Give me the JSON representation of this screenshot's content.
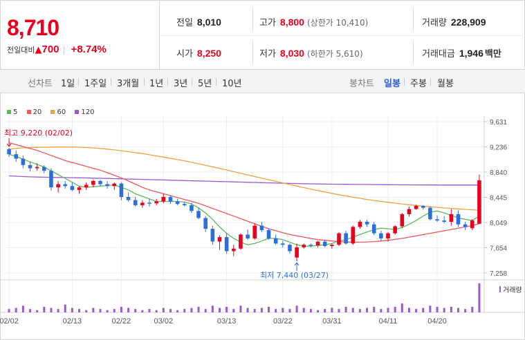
{
  "quote": {
    "price": "8,710",
    "change_label": "전일대비",
    "change_arrow": "▲",
    "change_amount": "700",
    "change_pct": "+8.74%"
  },
  "stats": {
    "prev_close_label": "전일",
    "prev_close": "8,010",
    "high_label": "고가",
    "high": "8,800",
    "upper_limit": "(상한가 10,410)",
    "volume_label": "거래량",
    "volume": "228,909",
    "open_label": "시가",
    "open": "8,250",
    "low_label": "저가",
    "low": "8,030",
    "lower_limit": "(하한가 5,610)",
    "value_label": "거래대금",
    "value": "1,946",
    "value_unit": "백만"
  },
  "tabs": {
    "line_chart_label": "선차트",
    "periods": [
      "1일",
      "1주일",
      "3개월",
      "1년",
      "3년",
      "5년",
      "10년"
    ],
    "candle_chart_label": "봉차트",
    "candle_periods": [
      "일봉",
      "주봉",
      "월봉"
    ],
    "active_candle": "일봉"
  },
  "colors": {
    "up": "#e8001c",
    "down": "#2a6fdb",
    "ma5": "#5cb85c",
    "ma20": "#f0555a",
    "ma60": "#f0a040",
    "ma120": "#9b59d0",
    "volume": "#9b59d0"
  },
  "chart_data": {
    "type": "candlestick",
    "legend": [
      {
        "name": "5",
        "color": "#5cb85c"
      },
      {
        "name": "20",
        "color": "#f0555a"
      },
      {
        "name": "60",
        "color": "#f0a040"
      },
      {
        "name": "120",
        "color": "#9b59d0"
      }
    ],
    "y_ticks": [
      "9,631",
      "9,236",
      "8,840",
      "8,445",
      "8,049",
      "7,654",
      "7,258"
    ],
    "ylim": [
      7258,
      9631
    ],
    "x_ticks": [
      "02/02",
      "02/13",
      "02/22",
      "03/02",
      "03/13",
      "03/22",
      "03/31",
      "04/11",
      "04/20"
    ],
    "x_tick_index": [
      0,
      9,
      16,
      22,
      31,
      39,
      46,
      54,
      61
    ],
    "annotations": {
      "high_label": "최고 9,220 (02/02)",
      "low_label": "최저 7,440 (03/27)",
      "volume_label": "거래량"
    },
    "ohlc": [
      [
        9200,
        9220,
        9080,
        9120
      ],
      [
        9120,
        9180,
        9000,
        9050
      ],
      [
        9050,
        9100,
        8900,
        8950
      ],
      [
        8950,
        9000,
        8850,
        8900
      ],
      [
        8900,
        8980,
        8860,
        8920
      ],
      [
        8920,
        8950,
        8820,
        8860
      ],
      [
        8860,
        8900,
        8550,
        8600
      ],
      [
        8600,
        8700,
        8520,
        8650
      ],
      [
        8650,
        8700,
        8580,
        8620
      ],
      [
        8620,
        8680,
        8540,
        8560
      ],
      [
        8560,
        8620,
        8500,
        8600
      ],
      [
        8600,
        8680,
        8560,
        8640
      ],
      [
        8640,
        8720,
        8600,
        8700
      ],
      [
        8700,
        8720,
        8620,
        8650
      ],
      [
        8650,
        8700,
        8580,
        8620
      ],
      [
        8620,
        8680,
        8560,
        8660
      ],
      [
        8660,
        8680,
        8400,
        8450
      ],
      [
        8450,
        8520,
        8380,
        8400
      ],
      [
        8400,
        8450,
        8300,
        8320
      ],
      [
        8320,
        8400,
        8280,
        8360
      ],
      [
        8360,
        8420,
        8300,
        8350
      ],
      [
        8350,
        8420,
        8320,
        8380
      ],
      [
        8380,
        8500,
        8350,
        8450
      ],
      [
        8450,
        8470,
        8340,
        8380
      ],
      [
        8380,
        8420,
        8320,
        8340
      ],
      [
        8340,
        8380,
        8300,
        8320
      ],
      [
        8320,
        8360,
        8200,
        8230
      ],
      [
        8230,
        8280,
        8100,
        8120
      ],
      [
        8120,
        8150,
        7900,
        7950
      ],
      [
        7950,
        8000,
        7700,
        7750
      ],
      [
        7750,
        7850,
        7620,
        7820
      ],
      [
        7820,
        7880,
        7560,
        7600
      ],
      [
        7600,
        7700,
        7520,
        7640
      ],
      [
        7640,
        7880,
        7620,
        7860
      ],
      [
        7860,
        7940,
        7780,
        7800
      ],
      [
        7800,
        8040,
        7780,
        8000
      ],
      [
        8000,
        8060,
        7900,
        7930
      ],
      [
        7930,
        7960,
        7780,
        7800
      ],
      [
        7800,
        7860,
        7700,
        7720
      ],
      [
        7720,
        7760,
        7660,
        7700
      ],
      [
        7700,
        7720,
        7560,
        7600
      ],
      [
        7500,
        7720,
        7440,
        7660
      ],
      [
        7660,
        7720,
        7640,
        7700
      ],
      [
        7700,
        7720,
        7660,
        7690
      ],
      [
        7690,
        7760,
        7660,
        7750
      ],
      [
        7750,
        7780,
        7660,
        7680
      ],
      [
        7680,
        7720,
        7640,
        7700
      ],
      [
        7700,
        7900,
        7680,
        7880
      ],
      [
        7880,
        7920,
        7700,
        7720
      ],
      [
        7720,
        8000,
        7700,
        7980
      ],
      [
        7980,
        8090,
        7950,
        8060
      ],
      [
        8060,
        8090,
        7980,
        8020
      ],
      [
        8020,
        8060,
        7850,
        7880
      ],
      [
        7880,
        7920,
        7760,
        7800
      ],
      [
        7800,
        7900,
        7750,
        7880
      ],
      [
        7880,
        8010,
        7860,
        7990
      ],
      [
        7990,
        8200,
        7960,
        8180
      ],
      [
        8180,
        8300,
        8140,
        8260
      ],
      [
        8260,
        8330,
        8250,
        8310
      ],
      [
        8310,
        8320,
        8250,
        8280
      ],
      [
        8280,
        8300,
        8080,
        8100
      ],
      [
        8100,
        8160,
        8060,
        8080
      ],
      [
        8080,
        8150,
        8040,
        8060
      ],
      [
        8060,
        8260,
        8000,
        8180
      ],
      [
        8180,
        8240,
        7980,
        8020
      ],
      [
        8020,
        8060,
        7930,
        7980
      ],
      [
        7960,
        8100,
        7930,
        8080
      ],
      [
        8030,
        8800,
        8030,
        8710
      ]
    ],
    "ma5": [
      9120,
      9085,
      9040,
      9000,
      8960,
      8920,
      8860,
      8800,
      8740,
      8680,
      8620,
      8600,
      8610,
      8620,
      8630,
      8640,
      8600,
      8560,
      8500,
      8460,
      8420,
      8380,
      8380,
      8380,
      8380,
      8370,
      8340,
      8280,
      8200,
      8100,
      7980,
      7880,
      7800,
      7740,
      7700,
      7720,
      7760,
      7800,
      7800,
      7780,
      7740,
      7700,
      7680,
      7680,
      7690,
      7700,
      7720,
      7760,
      7780,
      7820,
      7860,
      7900,
      7940,
      7960,
      7950,
      7940,
      7970,
      8020,
      8080,
      8150,
      8210,
      8230,
      8200,
      8160,
      8120,
      8100,
      8080,
      8150
    ],
    "ma20": [
      9300,
      9270,
      9240,
      9210,
      9180,
      9140,
      9100,
      9060,
      9020,
      8990,
      8960,
      8930,
      8900,
      8870,
      8830,
      8790,
      8750,
      8700,
      8650,
      8600,
      8560,
      8530,
      8500,
      8470,
      8440,
      8410,
      8380,
      8350,
      8310,
      8270,
      8230,
      8190,
      8150,
      8110,
      8070,
      8030,
      7990,
      7950,
      7920,
      7890,
      7860,
      7840,
      7820,
      7800,
      7780,
      7770,
      7760,
      7750,
      7745,
      7740,
      7740,
      7745,
      7750,
      7760,
      7770,
      7785,
      7800,
      7820,
      7840,
      7860,
      7880,
      7900,
      7920,
      7940,
      7960,
      7980,
      8000,
      8030
    ],
    "ma60": [
      9200,
      9210,
      9220,
      9225,
      9228,
      9230,
      9232,
      9233,
      9233,
      9232,
      9230,
      9225,
      9218,
      9210,
      9200,
      9188,
      9175,
      9160,
      9145,
      9130,
      9112,
      9094,
      9075,
      9055,
      9035,
      9015,
      8993,
      8970,
      8946,
      8922,
      8897,
      8872,
      8847,
      8821,
      8796,
      8770,
      8745,
      8720,
      8695,
      8670,
      8645,
      8620,
      8596,
      8573,
      8550,
      8528,
      8506,
      8485,
      8465,
      8446,
      8428,
      8411,
      8395,
      8380,
      8366,
      8352,
      8340,
      8328,
      8317,
      8306,
      8296,
      8287,
      8278,
      8270,
      8262,
      8255,
      8248,
      8240
    ],
    "ma120": [
      8780,
      8775,
      8770,
      8765,
      8762,
      8760,
      8758,
      8756,
      8754,
      8752,
      8750,
      8748,
      8745,
      8742,
      8740,
      8737,
      8734,
      8731,
      8728,
      8725,
      8722,
      8719,
      8716,
      8713,
      8710,
      8707,
      8704,
      8701,
      8698,
      8695,
      8692,
      8689,
      8686,
      8683,
      8680,
      8677,
      8674,
      8671,
      8668,
      8665,
      8662,
      8660,
      8658,
      8656,
      8654,
      8652,
      8650,
      8649,
      8648,
      8647,
      8646,
      8645,
      8644,
      8643,
      8642,
      8641,
      8640,
      8639,
      8638,
      8638,
      8637,
      8637,
      8636,
      8636,
      8636,
      8636,
      8636,
      8637
    ],
    "volume": [
      3,
      4,
      6,
      3,
      2,
      5,
      4,
      3,
      7,
      4,
      3,
      2,
      4,
      3,
      2,
      3,
      5,
      4,
      3,
      2,
      3,
      2,
      4,
      3,
      2,
      3,
      4,
      5,
      3,
      6,
      4,
      5,
      3,
      6,
      4,
      3,
      4,
      5,
      3,
      4,
      3,
      6,
      4,
      3,
      2,
      3,
      4,
      3,
      5,
      4,
      3,
      4,
      5,
      3,
      4,
      5,
      8,
      4,
      3,
      4,
      6,
      5,
      4,
      5,
      4,
      3,
      5,
      26
    ]
  }
}
